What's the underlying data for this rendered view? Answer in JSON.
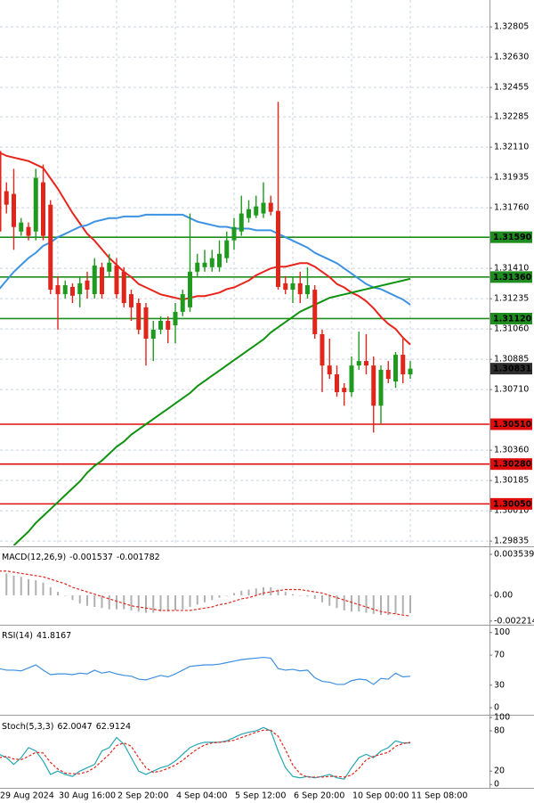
{
  "chart_data": [
    {
      "type": "candlestick",
      "categories": [
        "29 Aug 2024",
        null,
        null,
        null,
        null,
        null,
        null,
        null,
        "30 Aug 16:00",
        null,
        null,
        null,
        null,
        null,
        null,
        null,
        "2 Sep 20:00",
        null,
        null,
        null,
        null,
        null,
        null,
        null,
        "4 Sep 04:00",
        null,
        null,
        null,
        null,
        null,
        null,
        null,
        "5 Sep 12:00",
        null,
        null,
        null,
        null,
        null,
        null,
        null,
        "6 Sep 20:00",
        null,
        null,
        null,
        null,
        null,
        null,
        null,
        "10 Sep 00:00",
        null,
        null,
        null,
        null,
        null,
        null,
        null,
        "11 Sep 08:00"
      ],
      "open": [
        1.32088,
        1.31856,
        1.3184,
        1.31623,
        1.31649,
        1.31623,
        1.31907,
        1.31778,
        1.31313,
        1.31261,
        1.31303,
        1.31261,
        1.3134,
        1.31261,
        1.31417,
        1.31391,
        1.31427,
        1.31391,
        1.31261,
        1.3121,
        1.31185,
        1.31004,
        1.31056,
        1.31107,
        1.31081,
        1.31159,
        1.31185,
        1.31391,
        1.31417,
        1.31417,
        1.31417,
        1.31469,
        1.31572,
        1.31623,
        1.31701,
        1.31716,
        1.31727,
        1.31789,
        1.31742,
        1.31324,
        1.31287,
        1.31324,
        1.31261,
        1.31287,
        1.3103,
        1.30849,
        1.30798,
        1.3072,
        1.30695,
        1.30849,
        1.30875,
        1.30849,
        1.30617,
        1.30824,
        1.30757,
        1.30911,
        1.30798
      ],
      "high": [
        1.32191,
        1.31907,
        1.31985,
        1.31701,
        1.31675,
        1.31985,
        1.3201,
        1.31804,
        1.31365,
        1.3134,
        1.31324,
        1.31365,
        1.31391,
        1.31469,
        1.31443,
        1.31494,
        1.31469,
        1.31417,
        1.31287,
        1.31236,
        1.3121,
        1.31107,
        1.31133,
        1.31133,
        1.3121,
        1.31287,
        1.31727,
        1.31494,
        1.31517,
        1.31517,
        1.31572,
        1.31623,
        1.31701,
        1.3183,
        1.31804,
        1.3183,
        1.31907,
        1.3183,
        1.32372,
        1.31365,
        1.31365,
        1.31391,
        1.31417,
        1.31313,
        1.31056,
        1.31004,
        1.30849,
        1.30747,
        1.30901,
        1.31045,
        1.3103,
        1.30901,
        1.30849,
        1.30875,
        1.30927,
        1.31004,
        1.30875
      ],
      "low": [
        1.31443,
        1.31727,
        1.31517,
        1.31598,
        1.31572,
        1.31572,
        1.31572,
        1.31261,
        1.31056,
        1.31236,
        1.3121,
        1.31185,
        1.31236,
        1.31236,
        1.31236,
        1.31365,
        1.31236,
        1.31185,
        1.31107,
        1.3103,
        1.30849,
        1.30875,
        1.3103,
        1.30978,
        1.30978,
        1.31133,
        1.31159,
        1.31365,
        1.31391,
        1.31391,
        1.31391,
        1.31443,
        1.31517,
        1.31598,
        1.31675,
        1.31701,
        1.31701,
        1.31716,
        1.31287,
        1.31261,
        1.3121,
        1.3121,
        1.31236,
        1.31004,
        1.30695,
        1.30772,
        1.30669,
        1.30617,
        1.30669,
        1.30824,
        1.30798,
        1.30462,
        1.30514,
        1.30747,
        1.3072,
        1.30747,
        1.30772
      ],
      "close": [
        1.31623,
        1.31778,
        1.31649,
        1.31675,
        1.31598,
        1.31933,
        1.31598,
        1.31287,
        1.31261,
        1.31313,
        1.31252,
        1.31324,
        1.31287,
        1.31427,
        1.31261,
        1.31443,
        1.31261,
        1.3121,
        1.31185,
        1.31056,
        1.31004,
        1.31056,
        1.31107,
        1.31056,
        1.31159,
        1.31261,
        1.31391,
        1.31443,
        1.31443,
        1.31469,
        1.31494,
        1.31572,
        1.31649,
        1.31727,
        1.31752,
        1.31768,
        1.31789,
        1.31737,
        1.31303,
        1.31287,
        1.31324,
        1.31261,
        1.31313,
        1.3103,
        1.30849,
        1.30798,
        1.30695,
        1.30695,
        1.30849,
        1.30875,
        1.30849,
        1.30617,
        1.30824,
        1.30772,
        1.30911,
        1.30798,
        1.30831
      ],
      "up_color": "#1f9a1f",
      "down_color": "#e0251b",
      "last_price_color": "#2e2e2e",
      "series": [
        {
          "color": "#e8251c",
          "values": [
            1.3208,
            1.3206,
            1.3205,
            1.3204,
            1.3203,
            1.3201,
            1.3199,
            1.3193,
            1.3187,
            1.318,
            1.3173,
            1.3167,
            1.3161,
            1.3157,
            1.3152,
            1.3147,
            1.3143,
            1.3139,
            1.3136,
            1.3132,
            1.313,
            1.3128,
            1.3126,
            1.3125,
            1.3124,
            1.3123,
            1.3124,
            1.3125,
            1.3125,
            1.3126,
            1.3127,
            1.3129,
            1.313,
            1.3132,
            1.3134,
            1.3137,
            1.3139,
            1.3141,
            1.3142,
            1.3142,
            1.3143,
            1.3144,
            1.3144,
            1.3142,
            1.3139,
            1.3136,
            1.3132,
            1.313,
            1.3127,
            1.3125,
            1.3122,
            1.3118,
            1.3113,
            1.3109,
            1.3106,
            1.3101,
            1.3097
          ]
        },
        {
          "color": "#3d93e3",
          "values": [
            1.3129,
            1.3134,
            1.3139,
            1.3143,
            1.3147,
            1.315,
            1.3154,
            1.3156,
            1.3159,
            1.3161,
            1.3163,
            1.3165,
            1.3166,
            1.3168,
            1.3169,
            1.317,
            1.317,
            1.3171,
            1.3171,
            1.3171,
            1.3172,
            1.3172,
            1.3172,
            1.3172,
            1.3172,
            1.3172,
            1.317,
            1.3168,
            1.3167,
            1.3166,
            1.3165,
            1.3165,
            1.3164,
            1.3164,
            1.3164,
            1.3163,
            1.3163,
            1.3163,
            1.3161,
            1.3159,
            1.3157,
            1.3155,
            1.3153,
            1.315,
            1.3148,
            1.3146,
            1.3144,
            1.3141,
            1.3138,
            1.3135,
            1.3132,
            1.313,
            1.3129,
            1.3127,
            1.3125,
            1.3123,
            1.312
          ]
        },
        {
          "color": "#0f930f",
          "values": [
            null,
            null,
            1.2981,
            1.2985,
            1.2989,
            1.2994,
            1.2998,
            1.3002,
            1.3006,
            1.301,
            1.3014,
            1.3018,
            1.3023,
            1.3027,
            1.303,
            1.3034,
            1.3038,
            1.3041,
            1.3045,
            1.3048,
            1.3051,
            1.3054,
            1.3057,
            1.306,
            1.3063,
            1.3066,
            1.3069,
            1.3073,
            1.3076,
            1.3079,
            1.3082,
            1.3085,
            1.3088,
            1.3091,
            1.3094,
            1.3097,
            1.31,
            1.3104,
            1.3107,
            1.311,
            1.3113,
            1.3116,
            1.3118,
            1.312,
            1.3122,
            1.3124,
            1.3125,
            1.3126,
            1.3127,
            1.3128,
            1.3129,
            1.313,
            1.3131,
            1.3132,
            1.3133,
            1.3134,
            1.3135
          ]
        }
      ],
      "levels": [
        {
          "value": 1.3159,
          "label": "1.31590",
          "color": "#1e8c1e"
        },
        {
          "value": 1.3136,
          "label": "1.31360",
          "color": "#1e8c1e"
        },
        {
          "value": 1.3112,
          "label": "1.31120",
          "color": "#1e8c1e"
        },
        {
          "value": 1.3051,
          "label": "1.30510",
          "color": "#e00d0d"
        },
        {
          "value": 1.3028,
          "label": "1.30280",
          "color": "#e00d0d"
        },
        {
          "value": 1.3005,
          "label": "1.30050",
          "color": "#e00d0d"
        }
      ],
      "ylim": [
        1.2981,
        1.3296
      ],
      "yticks": [
        1.32805,
        {
          "value": 1.3263,
          "label": "1.32630"
        },
        1.32455,
        1.32285,
        {
          "value": 1.3211,
          "label": "1.32110"
        },
        1.31935,
        {
          "value": 1.3176,
          "label": "1.31760"
        },
        {
          "value": 1.3141,
          "label": "1.31410"
        },
        1.31235,
        {
          "value": 1.3106,
          "label": "1.31060"
        },
        1.30885,
        {
          "value": 1.3071,
          "label": "1.30710"
        },
        {
          "value": 1.3036,
          "label": "1.30360"
        },
        1.30185,
        {
          "value": 1.3001,
          "label": "1.30010"
        },
        1.29835
      ],
      "grid": true
    },
    {
      "type": "macd",
      "title": "MACD(12,26,9)",
      "series": [
        {
          "color": "#b0b0b0",
          "values": [
            0.002,
            0.0019,
            0.0017,
            0.0016,
            0.0014,
            0.0013,
            0.0011,
            0.0007,
            0.0003,
            0.0,
            -0.0004,
            -0.0007,
            -0.0009,
            -0.001,
            -0.0011,
            -0.0012,
            -0.0012,
            -0.0012,
            -0.0013,
            -0.0014,
            -0.0015,
            -0.0015,
            -0.0014,
            -0.0014,
            -0.0013,
            -0.0012,
            -0.001,
            -0.0008,
            -0.0006,
            -0.0004,
            -0.0002,
            0.0,
            0.0002,
            0.0004,
            0.0005,
            0.0006,
            0.0007,
            0.0007,
            0.0005,
            0.0003,
            0.0001,
            0.0,
            -0.0001,
            -0.0003,
            -0.0006,
            -0.0009,
            -0.0011,
            -0.0013,
            -0.0014,
            -0.0014,
            -0.0015,
            -0.0016,
            -0.0017,
            -0.0017,
            -0.0016,
            -0.0016,
            -0.001537
          ]
        },
        {
          "color": "#e0251b",
          "dash": true,
          "values": [
            0.0021,
            0.0021,
            0.002,
            0.0019,
            0.0018,
            0.0017,
            0.0016,
            0.0014,
            0.0012,
            0.001,
            0.0007,
            0.0005,
            0.0003,
            0.0001,
            -0.0001,
            -0.0003,
            -0.0005,
            -0.0007,
            -0.0009,
            -0.001,
            -0.0011,
            -0.0012,
            -0.0013,
            -0.0013,
            -0.0013,
            -0.0013,
            -0.0013,
            -0.0012,
            -0.0011,
            -0.001,
            -0.0008,
            -0.0007,
            -0.0005,
            -0.0003,
            -0.0002,
            0.0,
            0.0002,
            0.0003,
            0.0004,
            0.0005,
            0.0005,
            0.0005,
            0.0004,
            0.0003,
            0.0002,
            0.0,
            -0.0002,
            -0.0004,
            -0.0006,
            -0.0008,
            -0.001,
            -0.0012,
            -0.0014,
            -0.0015,
            -0.0016,
            -0.0017,
            -0.001782
          ]
        }
      ],
      "ylim": [
        -0.00246,
        0.00408
      ],
      "yticks": [
        0.003539,
        {
          "value": 0,
          "label": "0.00"
        },
        -0.002214
      ]
    },
    {
      "type": "line",
      "title": "RSI(14)",
      "series": [
        {
          "color": "#3d8fe0",
          "values": [
            52,
            50,
            50,
            49,
            53,
            57,
            50,
            44,
            45,
            45,
            44,
            46,
            45,
            50,
            46,
            48,
            45,
            43,
            42,
            38,
            37,
            40,
            43,
            41,
            45,
            50,
            55,
            56,
            57,
            57,
            58,
            60,
            62,
            64,
            65,
            66,
            67,
            66,
            52,
            50,
            51,
            49,
            50,
            40,
            35,
            34,
            31,
            31,
            36,
            38,
            37,
            31,
            39,
            38,
            46,
            41,
            41.8167
          ]
        }
      ],
      "ylim": [
        -7,
        108
      ],
      "yticks": [
        100,
        70,
        30,
        0
      ]
    },
    {
      "type": "line",
      "title": "Stoch(5,3,3)",
      "series": [
        {
          "color": "#26a6b4",
          "values": [
            45,
            40,
            30,
            40,
            55,
            50,
            35,
            15,
            20,
            15,
            12,
            20,
            25,
            30,
            50,
            55,
            70,
            60,
            40,
            20,
            15,
            20,
            25,
            28,
            35,
            45,
            55,
            60,
            63,
            63,
            63,
            65,
            70,
            75,
            78,
            80,
            85,
            80,
            50,
            25,
            12,
            10,
            12,
            10,
            12,
            15,
            10,
            8,
            25,
            40,
            45,
            40,
            50,
            55,
            65,
            62,
            62.0047
          ]
        },
        {
          "color": "#e0251b",
          "dash": true,
          "values": [
            40,
            42,
            38,
            37,
            42,
            48,
            47,
            33,
            23,
            17,
            16,
            16,
            19,
            25,
            35,
            45,
            58,
            62,
            57,
            40,
            25,
            18,
            20,
            24,
            29,
            36,
            45,
            53,
            59,
            62,
            63,
            64,
            66,
            70,
            74,
            78,
            81,
            81,
            72,
            52,
            29,
            16,
            11,
            11,
            11,
            12,
            12,
            11,
            14,
            24,
            37,
            42,
            45,
            48,
            57,
            61,
            62.9124
          ]
        }
      ],
      "ylim": [
        -5,
        100
      ],
      "yticks": [
        100,
        80,
        20,
        0
      ]
    }
  ]
}
